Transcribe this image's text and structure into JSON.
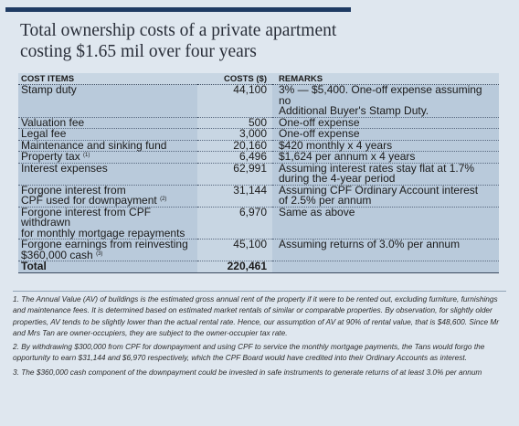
{
  "title_line1": "Total ownership costs of a private apartment",
  "title_line2": "costing $1.65 mil over four years",
  "headers": {
    "item": "COST ITEMS",
    "cost": "COSTS ($)",
    "remarks": "REMARKS"
  },
  "rows": [
    {
      "item": "Stamp duty",
      "item2": "",
      "sup": "",
      "cost": "44,100",
      "remarks": "3% — $5,400. One-off expense assuming no",
      "remarks2": "Additional Buyer's Stamp Duty."
    },
    {
      "item": "Valuation fee",
      "item2": "",
      "sup": "",
      "cost": "500",
      "remarks": "One-off expense",
      "remarks2": ""
    },
    {
      "item": "Legal fee",
      "item2": "",
      "sup": "",
      "cost": "3,000",
      "remarks": "One-off expense",
      "remarks2": ""
    },
    {
      "item": "Maintenance and sinking fund",
      "item2": "",
      "sup": "",
      "cost": "20,160",
      "remarks": "$420 monthly x 4 years",
      "remarks2": ""
    },
    {
      "item": "Property tax",
      "item2": "",
      "sup": "(1)",
      "cost": "6,496",
      "remarks": "$1,624 per annum x 4 years",
      "remarks2": ""
    },
    {
      "item": "Interest expenses",
      "item2": "",
      "sup": "",
      "cost": "62,991",
      "remarks": "Assuming interest rates stay flat at 1.7%",
      "remarks2": "during the 4-year period"
    },
    {
      "item": "Forgone interest from",
      "item2": "CPF used for downpayment",
      "sup": "(2)",
      "cost": "31,144",
      "remarks": "Assuming CPF Ordinary Account interest",
      "remarks2": "of 2.5% per annum"
    },
    {
      "item": "Forgone interest from CPF withdrawn",
      "item2": "for monthly mortgage repayments",
      "sup": "",
      "cost": "6,970",
      "remarks": "Same as above",
      "remarks2": ""
    },
    {
      "item": "Forgone earnings from reinvesting",
      "item2": "$360,000 cash",
      "sup": "(3)",
      "cost": "45,100",
      "remarks": "Assuming returns of 3.0% per annum",
      "remarks2": ""
    }
  ],
  "total": {
    "label": "Total",
    "cost": "220,461"
  },
  "notes": [
    "1. The Annual Value (AV) of buildings is the estimated gross annual rent of the property if it were to be rented out, excluding furniture, furnishings and maintenance fees. It is determined based on estimated market rentals of similar or comparable properties. By observation, for slightly older properties, AV tends to be slightly lower than the actual rental rate. Hence, our assumption of AV at 90% of rental value, that is $48,600. Since Mr and Mrs Tan are owner-occupiers, they are subject to the owner-occupier tax rate.",
    "2. By withdrawing $300,000 from CPF for downpayment and using CPF to service the monthly mortgage payments, the Tans would forgo the opportunity to earn $31,144 and $6,970 respectively, which the CPF Board would have credited into their Ordinary Accounts as interest.",
    "3. The $360,000 cash component of the downpayment could be invested in safe instruments to generate returns of at least 3.0% per annum"
  ]
}
